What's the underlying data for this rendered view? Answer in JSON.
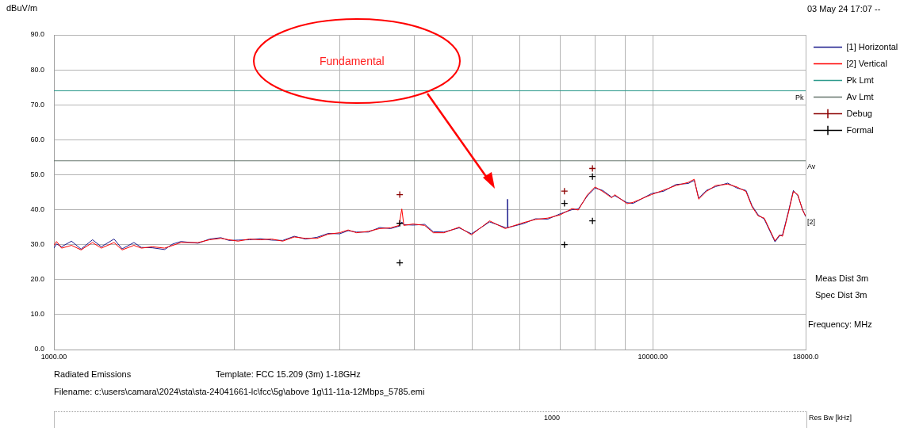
{
  "chart_data": {
    "type": "line",
    "xlabel": "Frequency: MHz",
    "ylabel": "dBuV/m",
    "log": "x",
    "grid": true,
    "legend": "right",
    "xlim": [
      1000,
      18000
    ],
    "xticks": [
      {
        "value": 1000,
        "label": "1000.00"
      },
      {
        "value": 2000,
        "label": null
      },
      {
        "value": 3000,
        "label": null
      },
      {
        "value": 4000,
        "label": null
      },
      {
        "value": 5000,
        "label": null
      },
      {
        "value": 6000,
        "label": null
      },
      {
        "value": 7000,
        "label": null
      },
      {
        "value": 8000,
        "label": null
      },
      {
        "value": 9000,
        "label": null
      },
      {
        "value": 10000,
        "label": "10000.00"
      },
      {
        "value": 18000,
        "label": "18000.0"
      }
    ],
    "ylim": [
      0,
      90
    ],
    "yticks": [
      {
        "value": 0,
        "label": "0.0"
      },
      {
        "value": 10,
        "label": "10.0"
      },
      {
        "value": 20,
        "label": "20.0"
      },
      {
        "value": 30,
        "label": "30.0"
      },
      {
        "value": 40,
        "label": "40.0"
      },
      {
        "value": 50,
        "label": "50.0"
      },
      {
        "value": 60,
        "label": "60.0"
      },
      {
        "value": 70,
        "label": "70.0"
      },
      {
        "value": 80,
        "label": "80.0"
      },
      {
        "value": 90,
        "label": "90.0"
      }
    ],
    "series": [
      {
        "name": "[1] Horizontal",
        "color": "#1c1c8c",
        "x": [
          1000,
          1010,
          1030,
          1070,
          1110,
          1160,
          1200,
          1260,
          1300,
          1360,
          1400,
          1460,
          1530,
          1580,
          1630,
          1740,
          1820,
          1900,
          1960,
          2030,
          2120,
          2210,
          2310,
          2410,
          2520,
          2630,
          2750,
          2870,
          3000,
          3100,
          3200,
          3350,
          3500,
          3650,
          3770,
          3810,
          3840,
          3980,
          4160,
          4300,
          4480,
          4750,
          4980,
          5340,
          5670,
          5710,
          5720,
          5730,
          6080,
          6370,
          6680,
          7000,
          7330,
          7510,
          7780,
          8010,
          8250,
          8540,
          8640,
          9060,
          9270,
          9950,
          10430,
          10930,
          11460,
          11730,
          11930,
          12290,
          12730,
          13340,
          13820,
          14310,
          14650,
          15000,
          15350,
          16000,
          16280,
          16470,
          16860,
          17170,
          17470,
          17780,
          18000
        ],
        "values": [
          29.0,
          30.2,
          29.4,
          31.0,
          28.7,
          31.4,
          29.4,
          31.6,
          28.8,
          30.6,
          29.2,
          29.1,
          28.6,
          30.2,
          30.9,
          30.4,
          31.6,
          32.0,
          31.2,
          31.3,
          31.4,
          31.7,
          31.3,
          31.2,
          32.4,
          31.6,
          32.1,
          33.2,
          33.1,
          34.0,
          33.6,
          33.6,
          34.9,
          34.6,
          35.3,
          36.5,
          35.7,
          35.6,
          35.8,
          33.7,
          33.6,
          34.8,
          33.1,
          36.5,
          34.9,
          34.8,
          43.0,
          34.9,
          36.0,
          37.4,
          37.3,
          38.8,
          40.0,
          40.2,
          44.0,
          46.2,
          45.5,
          43.6,
          44.0,
          42.0,
          41.8,
          44.6,
          45.3,
          47.2,
          47.5,
          48.4,
          43.3,
          45.5,
          46.6,
          47.6,
          46.2,
          45.5,
          41.1,
          38.5,
          37.3,
          30.8,
          32.5,
          32.8,
          39.7,
          45.5,
          44.0,
          40.2,
          38.0
        ]
      },
      {
        "name": "[2] Vertical",
        "color": "#ff0000",
        "x": [
          1000,
          1010,
          1030,
          1070,
          1110,
          1160,
          1200,
          1260,
          1300,
          1360,
          1400,
          1460,
          1530,
          1580,
          1630,
          1740,
          1820,
          1900,
          1960,
          2030,
          2120,
          2210,
          2310,
          2410,
          2520,
          2630,
          2750,
          2870,
          3000,
          3100,
          3200,
          3350,
          3500,
          3650,
          3770,
          3810,
          3840,
          3980,
          4160,
          4300,
          4480,
          4750,
          4980,
          5340,
          5670,
          6080,
          6370,
          6680,
          7000,
          7330,
          7510,
          7780,
          8010,
          8250,
          8540,
          8640,
          9060,
          9270,
          9950,
          10430,
          10930,
          11460,
          11730,
          11930,
          12290,
          12730,
          13340,
          13820,
          14310,
          14650,
          15000,
          15350,
          16000,
          16280,
          16470,
          16860,
          17170,
          17470,
          17780,
          18000
        ],
        "values": [
          29.8,
          30.9,
          29.0,
          29.8,
          28.5,
          30.6,
          29.0,
          30.6,
          28.5,
          29.8,
          29.0,
          29.4,
          29.0,
          29.8,
          30.6,
          30.6,
          31.4,
          31.8,
          31.4,
          31.0,
          31.6,
          31.4,
          31.6,
          31.0,
          32.2,
          31.8,
          31.8,
          33.0,
          33.4,
          34.2,
          33.4,
          33.8,
          34.6,
          34.8,
          35.5,
          40.2,
          35.5,
          35.9,
          35.5,
          33.4,
          33.4,
          35.0,
          32.8,
          36.8,
          34.6,
          36.3,
          37.2,
          37.6,
          38.5,
          40.3,
          39.9,
          44.3,
          46.5,
          45.2,
          43.4,
          44.3,
          41.7,
          42.1,
          44.3,
          45.6,
          46.9,
          47.8,
          48.7,
          43.0,
          45.2,
          46.9,
          47.3,
          46.5,
          45.2,
          40.8,
          38.2,
          37.6,
          31.1,
          32.8,
          32.4,
          39.4,
          45.2,
          44.3,
          39.9,
          38.2
        ]
      },
      {
        "name": "Pk Lmt",
        "color": "#2e9a8c",
        "x": [
          1000,
          18000
        ],
        "values": [
          74,
          74
        ]
      },
      {
        "name": "Av Lmt",
        "color": "#66756d",
        "x": [
          1000,
          18000
        ],
        "values": [
          54,
          54
        ]
      },
      {
        "name": "Debug",
        "color": "#8b0000",
        "type": "scatter",
        "marker": "cross",
        "x": [
          3780,
          7120,
          7930
        ],
        "values": [
          44.3,
          45.3,
          51.8
        ]
      },
      {
        "name": "Formal",
        "color": "#000000",
        "type": "scatter",
        "marker": "cross",
        "x": [
          3780,
          3780,
          7120,
          7120,
          7930,
          7930
        ],
        "values": [
          36.1,
          24.8,
          41.8,
          30.0,
          49.5,
          36.8
        ]
      }
    ],
    "annotations": [
      "03 May 24 17:07 --",
      "Fundamental",
      "Meas Dist 3m",
      "Spec Dist 3m",
      "Radiated Emissions",
      "Template: FCC 15.209 (3m) 1-18GHz",
      "Filename: c:\\users\\camara\\2024\\sta\\sta-24041661-lc\\fcc\\5g\\above 1g\\11-11a-12Mbps_5785.emi",
      "1000",
      "Res Bw [kHz]",
      "Pk",
      "Av",
      "[2]"
    ]
  }
}
